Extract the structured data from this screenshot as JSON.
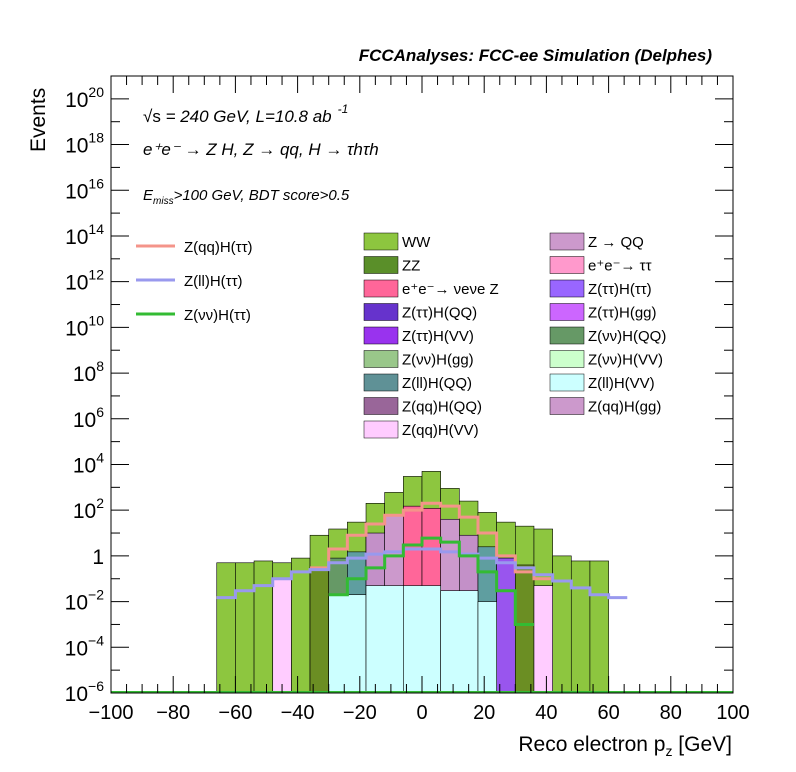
{
  "chart_data": {
    "type": "histogram",
    "title": "FCCAnalyses: FCC-ee Simulation (Delphes)",
    "xlabel": "Reco electron p",
    "xlabel_sub": "z",
    "xlabel_unit": " [GeV]",
    "ylabel": "Events",
    "log_y": true,
    "xlim": [
      -100,
      100
    ],
    "ylim": [
      1e-06,
      1e+21
    ],
    "grid": false,
    "legend_position": "top",
    "annotations": {
      "sqrt": "√s",
      "energy": " = 240 GeV, L=10.8 ab",
      "lumi_exp": "-1",
      "process": "e⁺e⁻ → Z H, Z → qq, H → τhτh",
      "cut_main": "E",
      "cut_sub": "miss",
      "cut_rest": ">100 GeV, BDT score>0.5"
    },
    "x_ticks": [
      {
        "v": -100,
        "label": "−100"
      },
      {
        "v": -80,
        "label": "−80"
      },
      {
        "v": -60,
        "label": "−60"
      },
      {
        "v": -40,
        "label": "−40"
      },
      {
        "v": -20,
        "label": "−20"
      },
      {
        "v": 0,
        "label": "0"
      },
      {
        "v": 20,
        "label": "20"
      },
      {
        "v": 40,
        "label": "40"
      },
      {
        "v": 60,
        "label": "60"
      },
      {
        "v": 80,
        "label": "80"
      },
      {
        "v": 100,
        "label": "100"
      }
    ],
    "y_ticks": [
      {
        "exp": -6,
        "base": "10",
        "sup": "−6"
      },
      {
        "exp": -4,
        "base": "10",
        "sup": "−4"
      },
      {
        "exp": -2,
        "base": "10",
        "sup": "−2"
      },
      {
        "exp": 0,
        "base": "1",
        "sup": ""
      },
      {
        "exp": 2,
        "base": "10",
        "sup": "2"
      },
      {
        "exp": 4,
        "base": "10",
        "sup": "4"
      },
      {
        "exp": 6,
        "base": "10",
        "sup": "6"
      },
      {
        "exp": 8,
        "base": "10",
        "sup": "8"
      },
      {
        "exp": 10,
        "base": "10",
        "sup": "10"
      },
      {
        "exp": 12,
        "base": "10",
        "sup": "12"
      },
      {
        "exp": 14,
        "base": "10",
        "sup": "14"
      },
      {
        "exp": 16,
        "base": "10",
        "sup": "16"
      },
      {
        "exp": 18,
        "base": "10",
        "sup": "18"
      },
      {
        "exp": 20,
        "base": "10",
        "sup": "20"
      }
    ],
    "stack_bins": [
      {
        "x0": -66,
        "x1": -60,
        "top": 0.5,
        "color": "#8dc63f"
      },
      {
        "x0": -60,
        "x1": -54,
        "top": 0.5,
        "color": "#8dc63f"
      },
      {
        "x0": -54,
        "x1": -48,
        "top": 0.6,
        "color": "#8dc63f"
      },
      {
        "x0": -48,
        "x1": -42,
        "top": 0.5,
        "color": "#8dc63f"
      },
      {
        "x0": -42,
        "x1": -36,
        "top": 0.8,
        "color": "#8dc63f"
      },
      {
        "x0": -36,
        "x1": -30,
        "top": 8,
        "color": "#8dc63f"
      },
      {
        "x0": -30,
        "x1": -24,
        "top": 15,
        "color": "#8dc63f"
      },
      {
        "x0": -24,
        "x1": -18,
        "top": 30,
        "color": "#8dc63f"
      },
      {
        "x0": -18,
        "x1": -12,
        "top": 200,
        "color": "#8dc63f"
      },
      {
        "x0": -12,
        "x1": -6,
        "top": 600,
        "color": "#8dc63f"
      },
      {
        "x0": -6,
        "x1": 0,
        "top": 3000,
        "color": "#8dc63f"
      },
      {
        "x0": 0,
        "x1": 6,
        "top": 5000,
        "color": "#8dc63f"
      },
      {
        "x0": 6,
        "x1": 12,
        "top": 900,
        "color": "#8dc63f"
      },
      {
        "x0": 12,
        "x1": 18,
        "top": 250,
        "color": "#8dc63f"
      },
      {
        "x0": 18,
        "x1": 24,
        "top": 80,
        "color": "#8dc63f"
      },
      {
        "x0": 24,
        "x1": 30,
        "top": 30,
        "color": "#8dc63f"
      },
      {
        "x0": 30,
        "x1": 36,
        "top": 20,
        "color": "#8dc63f"
      },
      {
        "x0": 36,
        "x1": 42,
        "top": 15,
        "color": "#8dc63f"
      },
      {
        "x0": 42,
        "x1": 48,
        "top": 1.0,
        "color": "#8dc63f"
      },
      {
        "x0": 48,
        "x1": 54,
        "top": 0.6,
        "color": "#8dc63f"
      },
      {
        "x0": 54,
        "x1": 60,
        "top": 0.6,
        "color": "#8dc63f"
      }
    ],
    "inner_bins": [
      {
        "x0": -48,
        "x1": -42,
        "top": 0.1,
        "color": "#ffccff"
      },
      {
        "x0": -36,
        "x1": -30,
        "top": 0.3,
        "color": "#6b8e23"
      },
      {
        "x0": -30,
        "x1": -24,
        "top": 0.8,
        "color": "#669966"
      },
      {
        "x0": -24,
        "x1": -18,
        "top": 1.5,
        "color": "#5f9ea0"
      },
      {
        "x0": -18,
        "x1": -12,
        "top": 10,
        "color": "#c390c8"
      },
      {
        "x0": -12,
        "x1": -6,
        "top": 60,
        "color": "#cc99cc"
      },
      {
        "x0": -6,
        "x1": 0,
        "top": 150,
        "color": "#ff6699"
      },
      {
        "x0": 0,
        "x1": 6,
        "top": 120,
        "color": "#ff6699"
      },
      {
        "x0": 6,
        "x1": 12,
        "top": 40,
        "color": "#cc99cc"
      },
      {
        "x0": 12,
        "x1": 18,
        "top": 8,
        "color": "#c390c8"
      },
      {
        "x0": 18,
        "x1": 24,
        "top": 2.5,
        "color": "#5f9ea0"
      },
      {
        "x0": 24,
        "x1": 30,
        "top": 0.8,
        "color": "#9955ee"
      },
      {
        "x0": 30,
        "x1": 36,
        "top": 0.4,
        "color": "#6b8e23"
      },
      {
        "x0": 36,
        "x1": 42,
        "top": 0.05,
        "color": "#ffccff"
      }
    ],
    "cyan_bins": [
      {
        "x0": -30,
        "x1": -18,
        "top": 0.02
      },
      {
        "x0": -18,
        "x1": -6,
        "top": 0.05
      },
      {
        "x0": -6,
        "x1": 6,
        "top": 0.05
      },
      {
        "x0": 6,
        "x1": 18,
        "top": 0.03
      },
      {
        "x0": 18,
        "x1": 24,
        "top": 0.01
      }
    ],
    "lines": [
      {
        "name": "Z(qq)H(ττ)",
        "color": "#f4948a",
        "x": [
          -36,
          -30,
          -24,
          -18,
          -12,
          -6,
          0,
          6,
          12,
          18,
          24,
          30,
          36
        ],
        "y": [
          0.3,
          2,
          8,
          25,
          60,
          100,
          200,
          150,
          50,
          10,
          1,
          0.2,
          0.1
        ]
      },
      {
        "name": "Z(ll)H(ττ)",
        "color": "#9999ee",
        "x": [
          -66,
          -60,
          -54,
          -48,
          -42,
          -36,
          -30,
          -24,
          -18,
          -12,
          -6,
          0,
          6,
          12,
          18,
          24,
          30,
          36,
          42,
          48,
          54,
          60
        ],
        "y": [
          0.015,
          0.03,
          0.05,
          0.1,
          0.2,
          0.25,
          0.5,
          0.8,
          1.2,
          1.5,
          2,
          2,
          1.5,
          1.2,
          0.8,
          0.5,
          0.3,
          0.15,
          0.08,
          0.04,
          0.02,
          0.015
        ]
      },
      {
        "name": "Z(νν)H(ττ)",
        "color": "#33bb33",
        "x": [
          -30,
          -24,
          -18,
          -12,
          -6,
          0,
          6,
          12,
          18,
          24,
          30
        ],
        "y": [
          0.02,
          0.1,
          0.3,
          1,
          3,
          6,
          4,
          1,
          0.2,
          0.03,
          0.001
        ]
      }
    ],
    "legend_lines": [
      "Z(qq)H(ττ)",
      "Z(ll)H(ττ)",
      "Z(νν)H(ττ)"
    ],
    "legend_left": [
      {
        "label": "WW",
        "color": "#8dc63f"
      },
      {
        "label": "ZZ",
        "color": "#5a8f29"
      },
      {
        "label": "e⁺e⁻→ νeνe Z",
        "color": "#ff6699"
      },
      {
        "label": "Z(ττ)H(QQ)",
        "color": "#6633cc"
      },
      {
        "label": "Z(ττ)H(VV)",
        "color": "#9933ee"
      },
      {
        "label": "Z(νν)H(gg)",
        "color": "#99c78a"
      },
      {
        "label": "Z(ll)H(QQ)",
        "color": "#5f9196"
      },
      {
        "label": "Z(qq)H(QQ)",
        "color": "#996699"
      },
      {
        "label": "Z(qq)H(VV)",
        "color": "#ffccff"
      }
    ],
    "legend_right": [
      {
        "label": "Z → QQ",
        "color": "#cc99cc"
      },
      {
        "label": "e⁺e⁻→ ττ",
        "color": "#ff99cc"
      },
      {
        "label": "Z(ττ)H(ττ)",
        "color": "#9966ff"
      },
      {
        "label": "Z(ττ)H(gg)",
        "color": "#cc66ff"
      },
      {
        "label": "Z(νν)H(QQ)",
        "color": "#669966"
      },
      {
        "label": "Z(νν)H(VV)",
        "color": "#ccffcc"
      },
      {
        "label": "Z(ll)H(VV)",
        "color": "#ccffff"
      },
      {
        "label": "Z(qq)H(gg)",
        "color": "#cc99cc"
      }
    ]
  }
}
